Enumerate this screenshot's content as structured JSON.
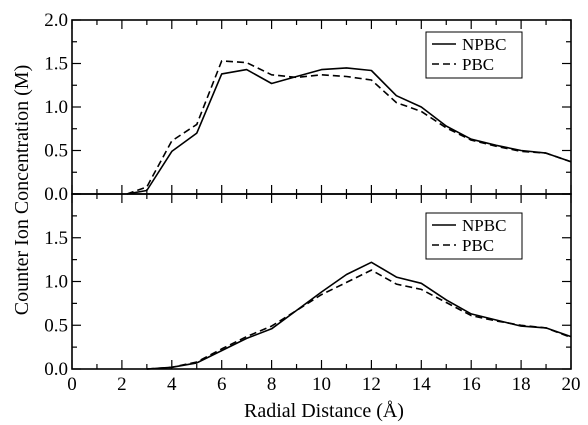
{
  "chart_data": [
    {
      "type": "line",
      "panel": "top",
      "xlim": [
        0,
        20
      ],
      "ylim": [
        0,
        2.0
      ],
      "xlabel": "Radial Distance (Å)",
      "ylabel": "Counter Ion Concentration (M)",
      "x_ticks": [
        "0",
        "2",
        "4",
        "6",
        "8",
        "10",
        "12",
        "14",
        "16",
        "18",
        "20"
      ],
      "y_ticks": [
        "0.0",
        "0.5",
        "1.0",
        "1.5",
        "2.0"
      ],
      "grid": false,
      "legend_position": "top-right",
      "series": [
        {
          "name": "NPBC",
          "style": "solid",
          "x": [
            2.2,
            3,
            4,
            5,
            6,
            7,
            8,
            9,
            10,
            11,
            12,
            13,
            14,
            15,
            16,
            17,
            18,
            19,
            20
          ],
          "y": [
            0.0,
            0.04,
            0.49,
            0.7,
            1.38,
            1.43,
            1.27,
            1.35,
            1.43,
            1.45,
            1.42,
            1.13,
            1.0,
            0.78,
            0.63,
            0.56,
            0.5,
            0.47,
            0.37
          ]
        },
        {
          "name": "PBC",
          "style": "dashed",
          "x": [
            2.2,
            3,
            4,
            5,
            6,
            7,
            8,
            9,
            10,
            11,
            12,
            13,
            14,
            15,
            16,
            17,
            18,
            19,
            20
          ],
          "y": [
            0.0,
            0.08,
            0.61,
            0.8,
            1.53,
            1.51,
            1.37,
            1.34,
            1.37,
            1.35,
            1.31,
            1.05,
            0.95,
            0.76,
            0.62,
            0.55,
            0.49,
            0.47,
            0.37
          ]
        }
      ]
    },
    {
      "type": "line",
      "panel": "bottom",
      "xlim": [
        0,
        20
      ],
      "ylim": [
        0,
        2.0
      ],
      "xlabel": "Radial Distance (Å)",
      "ylabel": "Counter Ion Concentration (M)",
      "x_ticks": [
        "0",
        "2",
        "4",
        "6",
        "8",
        "10",
        "12",
        "14",
        "16",
        "18",
        "20"
      ],
      "y_ticks": [
        "0.0",
        "0.5",
        "1.0",
        "1.5"
      ],
      "grid": false,
      "legend_position": "top-right",
      "series": [
        {
          "name": "NPBC",
          "style": "solid",
          "x": [
            3,
            4,
            5,
            6,
            7,
            8,
            9,
            10,
            11,
            12,
            13,
            14,
            15,
            16,
            17,
            18,
            19,
            20
          ],
          "y": [
            0.0,
            0.02,
            0.07,
            0.21,
            0.35,
            0.46,
            0.67,
            0.88,
            1.08,
            1.22,
            1.05,
            0.98,
            0.79,
            0.63,
            0.56,
            0.49,
            0.47,
            0.37
          ]
        },
        {
          "name": "PBC",
          "style": "dashed",
          "x": [
            3,
            4,
            5,
            6,
            7,
            8,
            9,
            10,
            11,
            12,
            13,
            14,
            15,
            16,
            17,
            18,
            19,
            20
          ],
          "y": [
            0.0,
            0.02,
            0.08,
            0.23,
            0.37,
            0.49,
            0.67,
            0.85,
            0.99,
            1.13,
            0.97,
            0.91,
            0.76,
            0.61,
            0.55,
            0.5,
            0.47,
            0.36
          ]
        }
      ]
    }
  ]
}
